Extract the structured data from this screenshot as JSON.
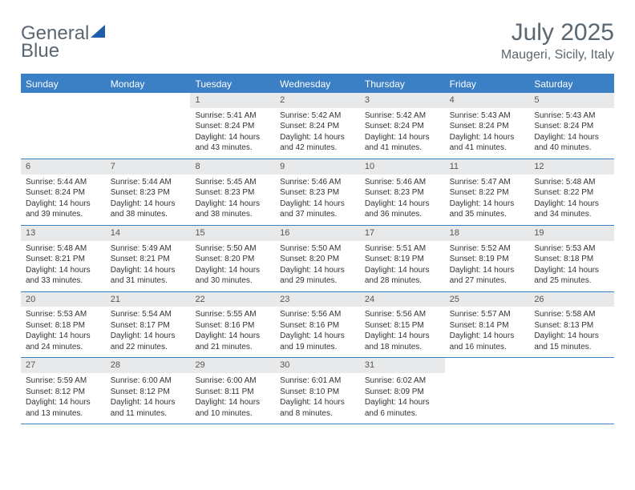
{
  "logo": {
    "text_a": "General",
    "text_b": "Blue",
    "icon_color": "#1d5fa8"
  },
  "header": {
    "month": "July 2025",
    "location": "Maugeri, Sicily, Italy"
  },
  "colors": {
    "brand_blue": "#3b7fc4",
    "header_text": "#5a6670",
    "daynum_bg": "#e8e9ea"
  },
  "weekdays": [
    "Sunday",
    "Monday",
    "Tuesday",
    "Wednesday",
    "Thursday",
    "Friday",
    "Saturday"
  ],
  "weeks": [
    [
      {
        "n": "",
        "sr": "",
        "ss": "",
        "dl1": "",
        "dl2": ""
      },
      {
        "n": "",
        "sr": "",
        "ss": "",
        "dl1": "",
        "dl2": ""
      },
      {
        "n": "1",
        "sr": "Sunrise: 5:41 AM",
        "ss": "Sunset: 8:24 PM",
        "dl1": "Daylight: 14 hours",
        "dl2": "and 43 minutes."
      },
      {
        "n": "2",
        "sr": "Sunrise: 5:42 AM",
        "ss": "Sunset: 8:24 PM",
        "dl1": "Daylight: 14 hours",
        "dl2": "and 42 minutes."
      },
      {
        "n": "3",
        "sr": "Sunrise: 5:42 AM",
        "ss": "Sunset: 8:24 PM",
        "dl1": "Daylight: 14 hours",
        "dl2": "and 41 minutes."
      },
      {
        "n": "4",
        "sr": "Sunrise: 5:43 AM",
        "ss": "Sunset: 8:24 PM",
        "dl1": "Daylight: 14 hours",
        "dl2": "and 41 minutes."
      },
      {
        "n": "5",
        "sr": "Sunrise: 5:43 AM",
        "ss": "Sunset: 8:24 PM",
        "dl1": "Daylight: 14 hours",
        "dl2": "and 40 minutes."
      }
    ],
    [
      {
        "n": "6",
        "sr": "Sunrise: 5:44 AM",
        "ss": "Sunset: 8:24 PM",
        "dl1": "Daylight: 14 hours",
        "dl2": "and 39 minutes."
      },
      {
        "n": "7",
        "sr": "Sunrise: 5:44 AM",
        "ss": "Sunset: 8:23 PM",
        "dl1": "Daylight: 14 hours",
        "dl2": "and 38 minutes."
      },
      {
        "n": "8",
        "sr": "Sunrise: 5:45 AM",
        "ss": "Sunset: 8:23 PM",
        "dl1": "Daylight: 14 hours",
        "dl2": "and 38 minutes."
      },
      {
        "n": "9",
        "sr": "Sunrise: 5:46 AM",
        "ss": "Sunset: 8:23 PM",
        "dl1": "Daylight: 14 hours",
        "dl2": "and 37 minutes."
      },
      {
        "n": "10",
        "sr": "Sunrise: 5:46 AM",
        "ss": "Sunset: 8:23 PM",
        "dl1": "Daylight: 14 hours",
        "dl2": "and 36 minutes."
      },
      {
        "n": "11",
        "sr": "Sunrise: 5:47 AM",
        "ss": "Sunset: 8:22 PM",
        "dl1": "Daylight: 14 hours",
        "dl2": "and 35 minutes."
      },
      {
        "n": "12",
        "sr": "Sunrise: 5:48 AM",
        "ss": "Sunset: 8:22 PM",
        "dl1": "Daylight: 14 hours",
        "dl2": "and 34 minutes."
      }
    ],
    [
      {
        "n": "13",
        "sr": "Sunrise: 5:48 AM",
        "ss": "Sunset: 8:21 PM",
        "dl1": "Daylight: 14 hours",
        "dl2": "and 33 minutes."
      },
      {
        "n": "14",
        "sr": "Sunrise: 5:49 AM",
        "ss": "Sunset: 8:21 PM",
        "dl1": "Daylight: 14 hours",
        "dl2": "and 31 minutes."
      },
      {
        "n": "15",
        "sr": "Sunrise: 5:50 AM",
        "ss": "Sunset: 8:20 PM",
        "dl1": "Daylight: 14 hours",
        "dl2": "and 30 minutes."
      },
      {
        "n": "16",
        "sr": "Sunrise: 5:50 AM",
        "ss": "Sunset: 8:20 PM",
        "dl1": "Daylight: 14 hours",
        "dl2": "and 29 minutes."
      },
      {
        "n": "17",
        "sr": "Sunrise: 5:51 AM",
        "ss": "Sunset: 8:19 PM",
        "dl1": "Daylight: 14 hours",
        "dl2": "and 28 minutes."
      },
      {
        "n": "18",
        "sr": "Sunrise: 5:52 AM",
        "ss": "Sunset: 8:19 PM",
        "dl1": "Daylight: 14 hours",
        "dl2": "and 27 minutes."
      },
      {
        "n": "19",
        "sr": "Sunrise: 5:53 AM",
        "ss": "Sunset: 8:18 PM",
        "dl1": "Daylight: 14 hours",
        "dl2": "and 25 minutes."
      }
    ],
    [
      {
        "n": "20",
        "sr": "Sunrise: 5:53 AM",
        "ss": "Sunset: 8:18 PM",
        "dl1": "Daylight: 14 hours",
        "dl2": "and 24 minutes."
      },
      {
        "n": "21",
        "sr": "Sunrise: 5:54 AM",
        "ss": "Sunset: 8:17 PM",
        "dl1": "Daylight: 14 hours",
        "dl2": "and 22 minutes."
      },
      {
        "n": "22",
        "sr": "Sunrise: 5:55 AM",
        "ss": "Sunset: 8:16 PM",
        "dl1": "Daylight: 14 hours",
        "dl2": "and 21 minutes."
      },
      {
        "n": "23",
        "sr": "Sunrise: 5:56 AM",
        "ss": "Sunset: 8:16 PM",
        "dl1": "Daylight: 14 hours",
        "dl2": "and 19 minutes."
      },
      {
        "n": "24",
        "sr": "Sunrise: 5:56 AM",
        "ss": "Sunset: 8:15 PM",
        "dl1": "Daylight: 14 hours",
        "dl2": "and 18 minutes."
      },
      {
        "n": "25",
        "sr": "Sunrise: 5:57 AM",
        "ss": "Sunset: 8:14 PM",
        "dl1": "Daylight: 14 hours",
        "dl2": "and 16 minutes."
      },
      {
        "n": "26",
        "sr": "Sunrise: 5:58 AM",
        "ss": "Sunset: 8:13 PM",
        "dl1": "Daylight: 14 hours",
        "dl2": "and 15 minutes."
      }
    ],
    [
      {
        "n": "27",
        "sr": "Sunrise: 5:59 AM",
        "ss": "Sunset: 8:12 PM",
        "dl1": "Daylight: 14 hours",
        "dl2": "and 13 minutes."
      },
      {
        "n": "28",
        "sr": "Sunrise: 6:00 AM",
        "ss": "Sunset: 8:12 PM",
        "dl1": "Daylight: 14 hours",
        "dl2": "and 11 minutes."
      },
      {
        "n": "29",
        "sr": "Sunrise: 6:00 AM",
        "ss": "Sunset: 8:11 PM",
        "dl1": "Daylight: 14 hours",
        "dl2": "and 10 minutes."
      },
      {
        "n": "30",
        "sr": "Sunrise: 6:01 AM",
        "ss": "Sunset: 8:10 PM",
        "dl1": "Daylight: 14 hours",
        "dl2": "and 8 minutes."
      },
      {
        "n": "31",
        "sr": "Sunrise: 6:02 AM",
        "ss": "Sunset: 8:09 PM",
        "dl1": "Daylight: 14 hours",
        "dl2": "and 6 minutes."
      },
      {
        "n": "",
        "sr": "",
        "ss": "",
        "dl1": "",
        "dl2": ""
      },
      {
        "n": "",
        "sr": "",
        "ss": "",
        "dl1": "",
        "dl2": ""
      }
    ]
  ]
}
